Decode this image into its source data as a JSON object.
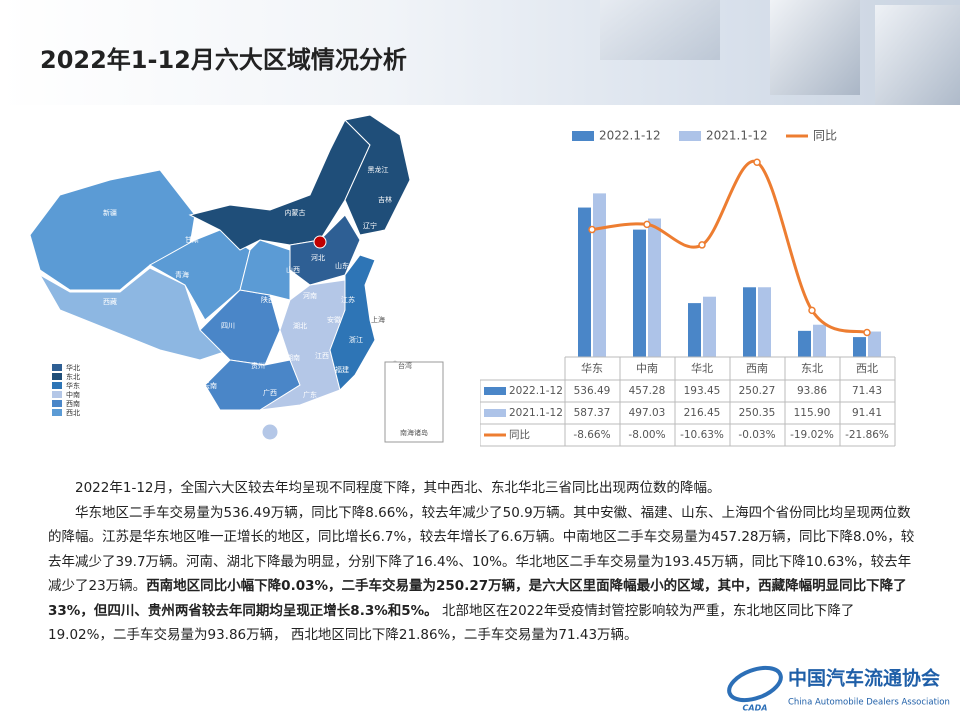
{
  "header": {
    "title": "2022年1-12月六大区域情况分析"
  },
  "map": {
    "legend": [
      "华北",
      "东北",
      "华东",
      "中南",
      "西南",
      "西北"
    ],
    "labels": [
      "新疆",
      "西藏",
      "青海",
      "甘肃",
      "内蒙古",
      "黑龙江",
      "吉林",
      "辽宁",
      "四川",
      "云南",
      "贵州",
      "陕西",
      "山西",
      "河北",
      "山东",
      "河南",
      "湖北",
      "湖南",
      "安徽",
      "江苏",
      "浙江",
      "江西",
      "福建",
      "广东",
      "广西",
      "上海",
      "台湾",
      "南海诸岛"
    ]
  },
  "chart_data": {
    "type": "bar",
    "categories": [
      "华东",
      "中南",
      "华北",
      "西南",
      "东北",
      "西北"
    ],
    "series": [
      {
        "name": "2022.1-12",
        "type": "bar",
        "color": "#4a86c8",
        "values": [
          536.49,
          457.28,
          193.45,
          250.27,
          93.86,
          71.43
        ]
      },
      {
        "name": "2021.1-12",
        "type": "bar",
        "color": "#adc3e8",
        "values": [
          587.37,
          497.03,
          216.45,
          250.35,
          115.9,
          91.41
        ],
        "value_labels": [
          "587.37",
          "497.03",
          "216.45",
          "250.35",
          "115.90",
          "91.41"
        ]
      },
      {
        "name": "同比",
        "type": "line",
        "axis": "y2",
        "color": "#ed7d31",
        "values": [
          -8.66,
          -8.0,
          -10.63,
          -0.03,
          -19.02,
          -21.86
        ],
        "value_labels": [
          "-8.66%",
          "-8.00%",
          "-10.63%",
          "-0.03%",
          "-19.02%",
          "-21.86%"
        ]
      }
    ],
    "ylim": [
      0,
      700
    ],
    "y2lim": [
      -25,
      0
    ],
    "legend": "top",
    "grid": false
  },
  "body": {
    "paragraphs": [
      "2022年1-12月，全国六大区较去年均呈现不同程度下降，其中西北、东北华北三省同比出现两位数的降幅。",
      [
        "华东地区二手车交易量为536.49万辆，同比下降8.66%，较去年减少了50.9万辆。其中安徽、福建、山东、上海四个省份同比均呈现两位数的降幅。江苏是华东地区唯一正增长的地区，同比增长6.7%，较去年增长了6.6万辆。中南地区二手车交易量为457.28万辆，同比下降8.0%，较去年减少了39.7万辆。河南、湖北下降最为明显，分别下降了16.4%、10%。华北地区二手车交易量为193.45万辆，同比下降10.63%，较去年减少了23万辆。",
        "西南地区同比小幅下降0.03%，二手车交易量为250.27万辆，是六大区里面降幅最小的区域，其中，西藏降幅明显同比下降了33%，但四川、贵州两省较去年同期均呈现正增长8.3%和5%。",
        " 北部地区在2022年受疫情封管控影响较为严重，东北地区同比下降了19.02%，二手车交易量为93.86万辆， 西北地区同比下降21.86%，二手车交易量为71.43万辆。"
      ]
    ]
  },
  "footer": {
    "logo_cn": "中国汽车流通协会",
    "logo_en": "China Automobile Dealers Association",
    "logo_mark": "CADA"
  }
}
